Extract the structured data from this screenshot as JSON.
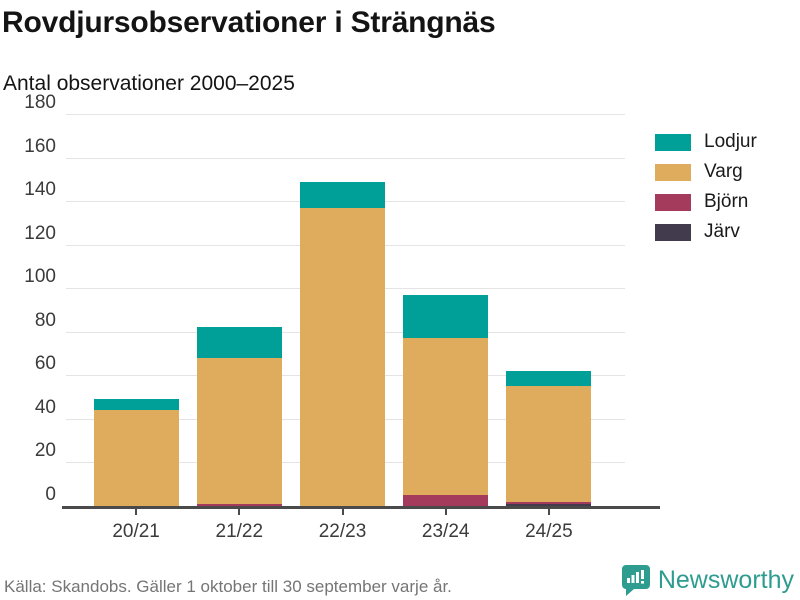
{
  "header": {
    "title": "Rovdjursobservationer i Strängnäs",
    "subtitle": "Antal observationer 2000–2025"
  },
  "chart_data": {
    "type": "bar",
    "stacked": true,
    "categories": [
      "20/21",
      "21/22",
      "22/23",
      "23/24",
      "24/25"
    ],
    "series": [
      {
        "name": "Järv",
        "color": "#413b4d",
        "values": [
          0,
          0,
          0,
          0,
          1
        ]
      },
      {
        "name": "Björn",
        "color": "#a43a5c",
        "values": [
          0,
          1,
          0,
          5,
          1
        ]
      },
      {
        "name": "Varg",
        "color": "#deac5c",
        "values": [
          44,
          67,
          137,
          72,
          53
        ]
      },
      {
        "name": "Lodjur",
        "color": "#00a099",
        "values": [
          5,
          14,
          12,
          20,
          7
        ]
      }
    ],
    "totals": [
      49,
      82,
      149,
      97,
      62
    ],
    "legend_order": [
      "Lodjur",
      "Varg",
      "Björn",
      "Järv"
    ],
    "legend_position": "right",
    "ylim": [
      0,
      180
    ],
    "ytick_step": 20,
    "grid": true,
    "axis_color": "#4a4a4a",
    "grid_color": "#e4e4e4"
  },
  "footer": {
    "source": "Källa: Skandobs. Gäller 1 oktober till 30 september varje år.",
    "brand": "Newsworthy",
    "brand_color": "#2f9c90"
  }
}
